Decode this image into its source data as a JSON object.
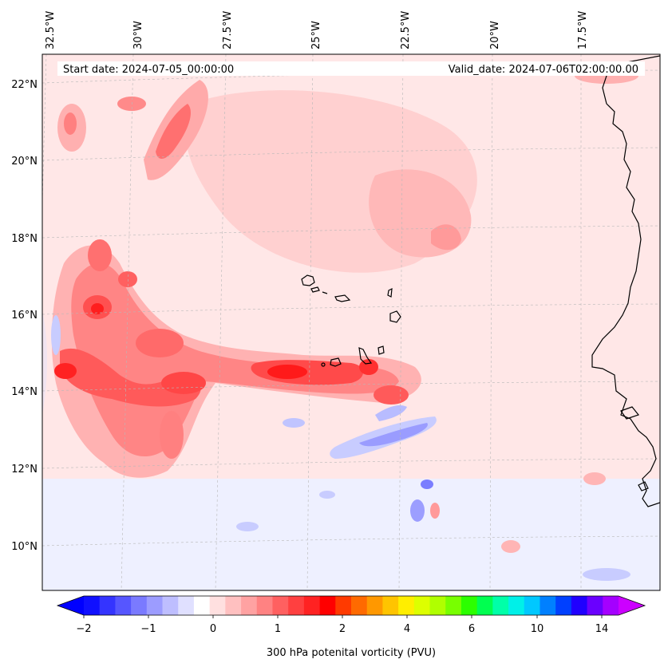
{
  "header": {
    "start_date": "Start date: 2024-07-05_00:00:00",
    "valid_date": "Valid_date: 2024-07-06T02:00:00.00"
  },
  "map": {
    "lon_labels": [
      "32.5°W",
      "30°W",
      "27.5°W",
      "25°W",
      "22.5°W",
      "20°W",
      "17.5°W"
    ],
    "lat_labels": [
      "22°N",
      "20°N",
      "18°N",
      "16°N",
      "14°N",
      "12°N",
      "10°N"
    ],
    "gridlines": true,
    "field": "300 hPa potenital vorticity (PVU)"
  },
  "colorbar": {
    "tick_labels": [
      "−2",
      "−1",
      "0",
      "1",
      "2",
      "4",
      "6",
      "10",
      "14"
    ],
    "label": "300 hPa potenital vorticity (PVU)",
    "colors": [
      "#1010ff",
      "#3434ff",
      "#5656ff",
      "#7a7aff",
      "#9c9cff",
      "#bebeff",
      "#e0e0ff",
      "#ffffff",
      "#ffe0e0",
      "#ffc0c0",
      "#ffa2a2",
      "#ff8282",
      "#ff6060",
      "#ff4040",
      "#ff2222",
      "#ff0000",
      "#ff3a00",
      "#ff6a00",
      "#ff9800",
      "#ffc400",
      "#ffee00",
      "#ddff00",
      "#b0ff00",
      "#78ff00",
      "#2cff00",
      "#00ff50",
      "#00ffa8",
      "#00f0e8",
      "#00c8ff",
      "#0080ff",
      "#0040ff",
      "#2000ff",
      "#6a00ff",
      "#a400ff"
    ]
  }
}
